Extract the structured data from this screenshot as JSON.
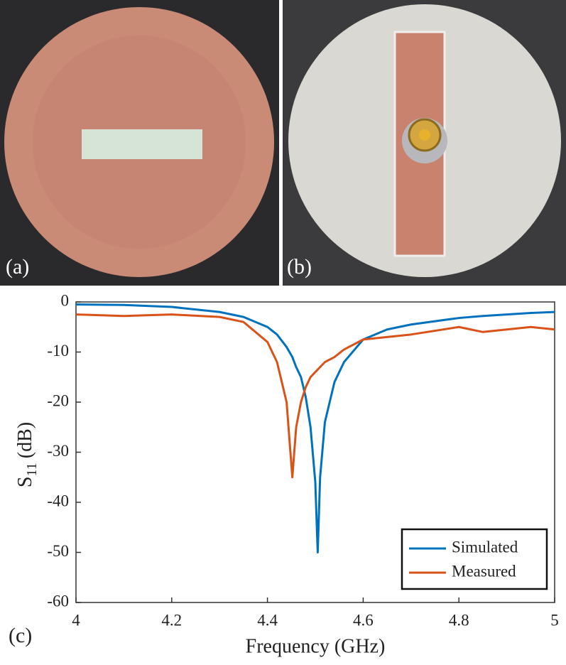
{
  "panel_labels": [
    "(a)",
    "(b)",
    "(c)"
  ],
  "chart_data": {
    "type": "line",
    "x_label": "Frequency (GHz)",
    "y_label": {
      "symbol": "S",
      "subscript": "11",
      "unit": "(dB)"
    },
    "x": [
      4.0,
      4.1,
      4.2,
      4.3,
      4.35,
      4.4,
      4.42,
      4.44,
      4.452,
      4.46,
      4.47,
      4.48,
      4.49,
      4.5,
      4.505,
      4.51,
      4.52,
      4.54,
      4.56,
      4.6,
      4.65,
      4.7,
      4.8,
      4.85,
      4.9,
      4.95,
      5.0
    ],
    "series": [
      {
        "name": "Simulated",
        "color": "#0072bd",
        "values": [
          -0.5,
          -0.6,
          -1,
          -2,
          -3,
          -5,
          -6.5,
          -9,
          -11,
          -13,
          -15,
          -19,
          -25,
          -36,
          -50,
          -35,
          -24,
          -16,
          -12,
          -7.5,
          -5.5,
          -4.5,
          -3.2,
          -2.8,
          -2.5,
          -2.2,
          -2
        ]
      },
      {
        "name": "Measured",
        "color": "#d95319",
        "values": [
          -2.5,
          -2.8,
          -2.5,
          -3,
          -4,
          -8,
          -12,
          -20,
          -35,
          -25,
          -20,
          -17,
          -15,
          -14,
          -13.5,
          -13,
          -12,
          -11,
          -9.5,
          -7.5,
          -7,
          -6.5,
          -5,
          -6,
          -5.5,
          -5,
          -5.5
        ]
      }
    ],
    "xlim": [
      4,
      5
    ],
    "ylim": [
      -60,
      0
    ],
    "xticks": [
      4,
      4.2,
      4.4,
      4.6,
      4.8,
      5
    ],
    "yticks": [
      0,
      -10,
      -20,
      -30,
      -40,
      -50,
      -60
    ],
    "legend": "lower right",
    "grid": false
  }
}
